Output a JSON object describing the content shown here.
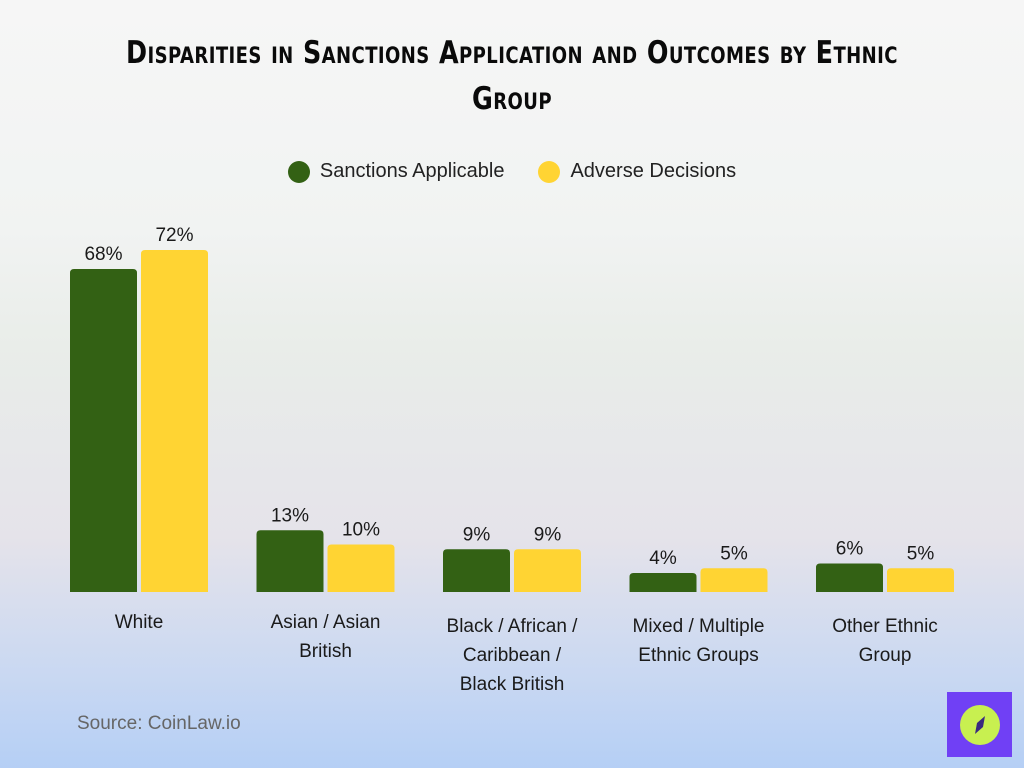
{
  "chart_data": {
    "type": "bar",
    "title": "Disparities in Sanctions Application and Outcomes by Ethnic Group",
    "categories": [
      [
        "White"
      ],
      [
        "Asian / Asian",
        "British"
      ],
      [
        "Black / African /",
        "Caribbean /",
        "Black British"
      ],
      [
        "Mixed / Multiple",
        "Ethnic Groups"
      ],
      [
        "Other Ethnic",
        "Group"
      ]
    ],
    "series": [
      {
        "name": "Sanctions Applicable",
        "color": "#336114",
        "values": [
          68,
          13,
          9,
          4,
          6
        ]
      },
      {
        "name": "Adverse Decisions",
        "color": "#ffd433",
        "values": [
          72,
          10,
          9,
          5,
          5
        ]
      }
    ],
    "value_format": "percent",
    "ylim": [
      0,
      75
    ],
    "grid": false,
    "legend_position": "top-center",
    "xlabel": "",
    "ylabel": ""
  },
  "source": "Source: CoinLaw.io",
  "logo": {
    "icon": "compass-icon",
    "bg": "#7040f5",
    "fg": "#c8f050"
  }
}
